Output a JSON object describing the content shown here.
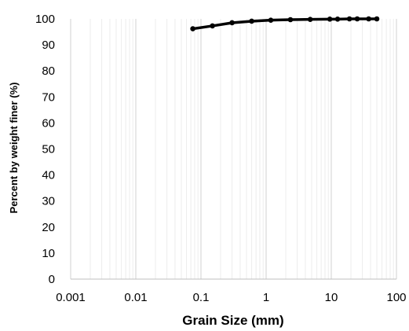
{
  "chart_data": {
    "type": "line",
    "xlabel": "Grain Size  (mm)",
    "ylabel": "Percent by weight finer (%)",
    "x_scale": "log",
    "xlim": [
      0.001,
      100
    ],
    "ylim": [
      0,
      100
    ],
    "x_ticks": [
      "0.001",
      "0.01",
      "0.1",
      "1",
      "10",
      "100"
    ],
    "y_ticks": [
      "0",
      "10",
      "20",
      "30",
      "40",
      "50",
      "60",
      "70",
      "80",
      "90",
      "100"
    ],
    "grid": true,
    "series": [
      {
        "color": "#000000",
        "marker": "circle",
        "x": [
          0.075,
          0.15,
          0.3,
          0.6,
          1.18,
          2.36,
          4.75,
          9.5,
          12.5,
          19,
          25,
          37.5,
          50
        ],
        "y": [
          96.2,
          97.3,
          98.5,
          99.1,
          99.5,
          99.7,
          99.8,
          99.9,
          99.9,
          100,
          100,
          100,
          100
        ]
      }
    ]
  }
}
